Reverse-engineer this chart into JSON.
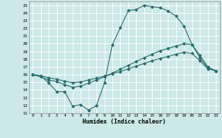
{
  "xlabel": "Humidex (Indice chaleur)",
  "bg_color": "#cce8e8",
  "grid_color": "#ffffff",
  "line_color": "#2a6e6e",
  "xlim": [
    -0.5,
    23.5
  ],
  "ylim": [
    11,
    25.5
  ],
  "xticks": [
    0,
    1,
    2,
    3,
    4,
    5,
    6,
    7,
    8,
    9,
    10,
    11,
    12,
    13,
    14,
    15,
    16,
    17,
    18,
    19,
    20,
    21,
    22,
    23
  ],
  "yticks": [
    11,
    12,
    13,
    14,
    15,
    16,
    17,
    18,
    19,
    20,
    21,
    22,
    23,
    24,
    25
  ],
  "line1_x": [
    0,
    1,
    2,
    3,
    4,
    5,
    6,
    7,
    8,
    9,
    10,
    11,
    12,
    13,
    14,
    15,
    16,
    17,
    18,
    19,
    20,
    21,
    22,
    23
  ],
  "line1_y": [
    16.0,
    15.85,
    14.9,
    13.8,
    13.8,
    11.9,
    12.1,
    11.4,
    12.0,
    14.9,
    19.9,
    22.1,
    24.3,
    24.45,
    25.0,
    24.8,
    24.7,
    24.25,
    23.6,
    22.3,
    19.9,
    18.2,
    16.8,
    16.5
  ],
  "line2_x": [
    0,
    1,
    2,
    3,
    4,
    5,
    6,
    7,
    8,
    9,
    10,
    11,
    12,
    13,
    14,
    15,
    16,
    17,
    18,
    19,
    20,
    21,
    22,
    23
  ],
  "line2_y": [
    16.0,
    15.7,
    15.3,
    15.1,
    14.7,
    14.35,
    14.5,
    14.9,
    15.3,
    15.7,
    16.2,
    16.7,
    17.2,
    17.7,
    18.2,
    18.65,
    19.1,
    19.4,
    19.7,
    20.0,
    19.9,
    18.5,
    17.0,
    16.5
  ],
  "line3_x": [
    0,
    1,
    2,
    3,
    4,
    5,
    6,
    7,
    8,
    9,
    10,
    11,
    12,
    13,
    14,
    15,
    16,
    17,
    18,
    19,
    20,
    21,
    22,
    23
  ],
  "line3_y": [
    16.0,
    15.85,
    15.6,
    15.4,
    15.15,
    14.95,
    15.05,
    15.3,
    15.55,
    15.8,
    16.1,
    16.4,
    16.75,
    17.1,
    17.45,
    17.8,
    18.1,
    18.35,
    18.65,
    18.9,
    18.75,
    17.8,
    16.75,
    16.5
  ]
}
